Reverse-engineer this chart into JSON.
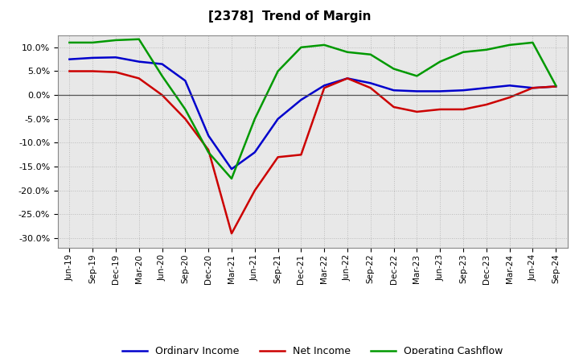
{
  "title": "[2378]  Trend of Margin",
  "x_labels": [
    "Jun-19",
    "Sep-19",
    "Dec-19",
    "Mar-20",
    "Jun-20",
    "Sep-20",
    "Dec-20",
    "Mar-21",
    "Jun-21",
    "Sep-21",
    "Dec-21",
    "Mar-22",
    "Jun-22",
    "Sep-22",
    "Dec-22",
    "Mar-23",
    "Jun-23",
    "Sep-23",
    "Dec-23",
    "Mar-24",
    "Jun-24",
    "Sep-24"
  ],
  "ordinary_income": [
    7.5,
    7.8,
    7.9,
    7.0,
    6.5,
    3.0,
    -8.5,
    -15.5,
    -12.0,
    -5.0,
    -1.0,
    2.0,
    3.5,
    2.5,
    1.0,
    0.8,
    0.8,
    1.0,
    1.5,
    2.0,
    1.5,
    1.8
  ],
  "net_income": [
    5.0,
    5.0,
    4.8,
    3.5,
    0.0,
    -5.0,
    -11.5,
    -29.0,
    -20.0,
    -13.0,
    -12.5,
    1.5,
    3.5,
    1.5,
    -2.5,
    -3.5,
    -3.0,
    -3.0,
    -2.0,
    -0.5,
    1.5,
    1.8
  ],
  "operating_cashflow": [
    11.0,
    11.0,
    11.5,
    11.7,
    4.0,
    -3.0,
    -12.0,
    -17.5,
    -5.0,
    5.0,
    10.0,
    10.5,
    9.0,
    8.5,
    5.5,
    4.0,
    7.0,
    9.0,
    9.5,
    10.5,
    11.0,
    2.0
  ],
  "ylim": [
    -32,
    12.5
  ],
  "yticks": [
    -30,
    -25,
    -20,
    -15,
    -10,
    -5,
    0,
    5,
    10
  ],
  "line_color_ordinary": "#0000cc",
  "line_color_net": "#cc0000",
  "line_color_cashflow": "#009900",
  "bg_color": "#ffffff",
  "plot_bg_color": "#e8e8e8",
  "grid_color": "#bbbbbb",
  "title_fontsize": 11,
  "legend_labels": [
    "Ordinary Income",
    "Net Income",
    "Operating Cashflow"
  ]
}
